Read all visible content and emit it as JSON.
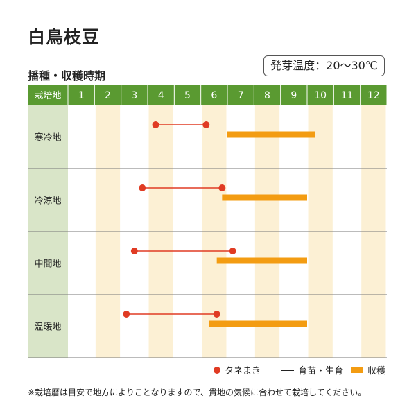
{
  "title": "白鳥枝豆",
  "subtitle": "播種・収穫時期",
  "germination_temp": "発芽温度：20～30℃",
  "legend": {
    "sowing": "タネまき",
    "growing": "育苗・生育",
    "harvest": "収穫"
  },
  "note": "※栽培暦は目安で地方によりことなりますので、貴地の気候に合わせて栽培してください。",
  "colors": {
    "header_green": "#5a9a31",
    "row_label_bg": "#d9e5c8",
    "stripe": "#fcf0d4",
    "sow_dot": "#e03b23",
    "sow_line": "#e03b23",
    "harvest_bar": "#f39c12"
  },
  "chart_data": {
    "type": "table",
    "header_label": "栽培地",
    "months": [
      "1",
      "2",
      "3",
      "4",
      "5",
      "6",
      "7",
      "8",
      "9",
      "10",
      "11",
      "12"
    ],
    "regions": [
      {
        "name": "寒冷地",
        "sowing": [
          4.3,
          6.2
        ],
        "harvest": [
          7.0,
          10.3
        ]
      },
      {
        "name": "冷涼地",
        "sowing": [
          3.8,
          6.8
        ],
        "harvest": [
          6.8,
          10.0
        ]
      },
      {
        "name": "中間地",
        "sowing": [
          3.5,
          7.2
        ],
        "harvest": [
          6.6,
          10.0
        ]
      },
      {
        "name": "温暖地",
        "sowing": [
          3.2,
          6.6
        ],
        "harvest": [
          6.3,
          10.0
        ]
      }
    ]
  }
}
